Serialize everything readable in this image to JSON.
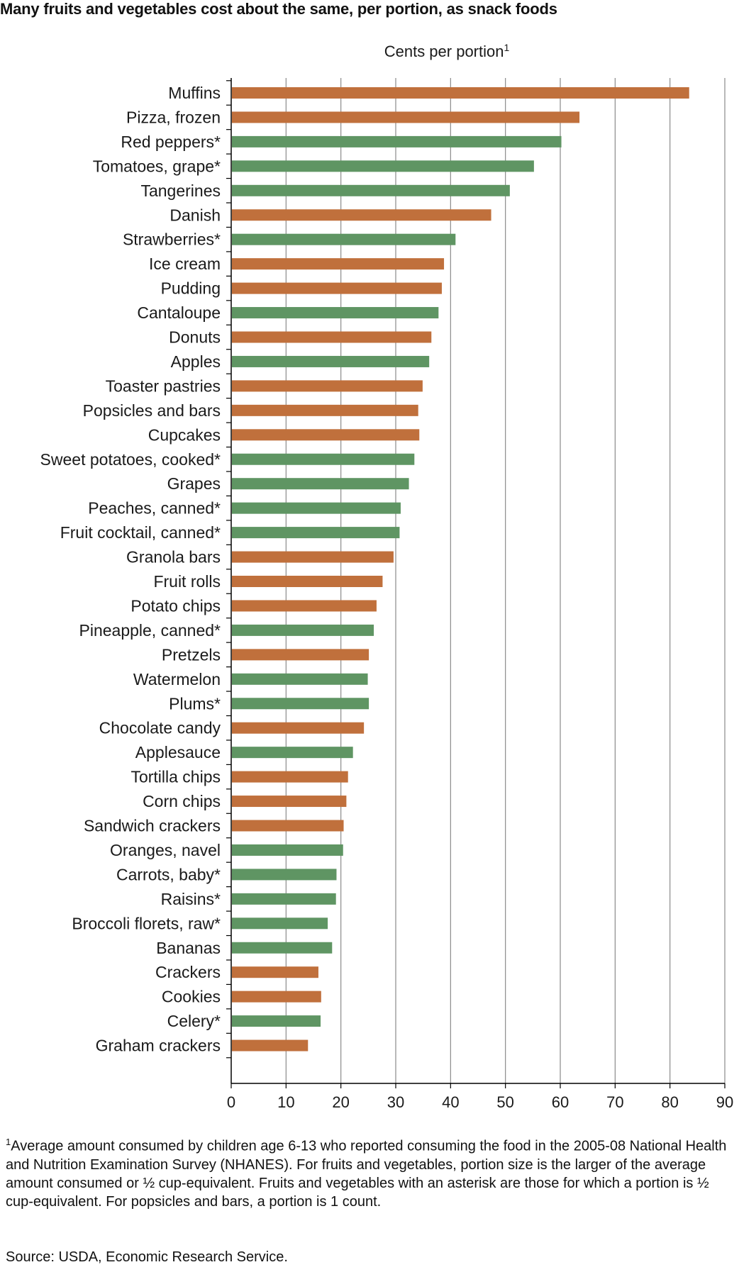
{
  "chart_data": {
    "type": "bar",
    "orientation": "horizontal",
    "title": "Many fruits and vegetables cost about the same, per portion, as snack foods",
    "xlabel": "Cents per portion",
    "xlabel_superscript": "1",
    "xlim": [
      0,
      90
    ],
    "xticks": [
      0,
      10,
      20,
      30,
      40,
      50,
      60,
      70,
      80,
      90
    ],
    "grid": true,
    "colors": {
      "snack": "#c0703c",
      "produce": "#5f9563"
    },
    "bars": [
      {
        "label": "Muffins",
        "value": 83.5,
        "group": "snack"
      },
      {
        "label": "Pizza, frozen",
        "value": 63.5,
        "group": "snack"
      },
      {
        "label": "Red peppers*",
        "value": 60.2,
        "group": "produce"
      },
      {
        "label": "Tomatoes, grape*",
        "value": 55.2,
        "group": "produce"
      },
      {
        "label": "Tangerines",
        "value": 50.8,
        "group": "produce"
      },
      {
        "label": "Danish",
        "value": 47.4,
        "group": "snack"
      },
      {
        "label": "Strawberries*",
        "value": 40.9,
        "group": "produce"
      },
      {
        "label": "Ice cream",
        "value": 38.8,
        "group": "snack"
      },
      {
        "label": "Pudding",
        "value": 38.4,
        "group": "snack"
      },
      {
        "label": "Cantaloupe",
        "value": 37.8,
        "group": "produce"
      },
      {
        "label": "Donuts",
        "value": 36.5,
        "group": "snack"
      },
      {
        "label": "Apples",
        "value": 36.1,
        "group": "produce"
      },
      {
        "label": "Toaster pastries",
        "value": 34.9,
        "group": "snack"
      },
      {
        "label": "Popsicles and bars",
        "value": 34.1,
        "group": "snack"
      },
      {
        "label": "Cupcakes",
        "value": 34.3,
        "group": "snack"
      },
      {
        "label": "Sweet potatoes, cooked*",
        "value": 33.4,
        "group": "produce"
      },
      {
        "label": "Grapes",
        "value": 32.4,
        "group": "produce"
      },
      {
        "label": "Peaches, canned*",
        "value": 30.9,
        "group": "produce"
      },
      {
        "label": "Fruit cocktail, canned*",
        "value": 30.7,
        "group": "produce"
      },
      {
        "label": "Granola bars",
        "value": 29.6,
        "group": "snack"
      },
      {
        "label": "Fruit rolls",
        "value": 27.6,
        "group": "snack"
      },
      {
        "label": "Potato chips",
        "value": 26.5,
        "group": "snack"
      },
      {
        "label": "Pineapple, canned*",
        "value": 26.0,
        "group": "produce"
      },
      {
        "label": "Pretzels",
        "value": 25.1,
        "group": "snack"
      },
      {
        "label": "Watermelon",
        "value": 24.9,
        "group": "produce"
      },
      {
        "label": "Plums*",
        "value": 25.1,
        "group": "produce"
      },
      {
        "label": "Chocolate candy",
        "value": 24.2,
        "group": "snack"
      },
      {
        "label": "Applesauce",
        "value": 22.2,
        "group": "produce"
      },
      {
        "label": "Tortilla chips",
        "value": 21.3,
        "group": "snack"
      },
      {
        "label": "Corn chips",
        "value": 21.0,
        "group": "snack"
      },
      {
        "label": "Sandwich crackers",
        "value": 20.5,
        "group": "snack"
      },
      {
        "label": "Oranges, navel",
        "value": 20.4,
        "group": "produce"
      },
      {
        "label": "Carrots, baby*",
        "value": 19.2,
        "group": "produce"
      },
      {
        "label": "Raisins*",
        "value": 19.1,
        "group": "produce"
      },
      {
        "label": "Broccoli florets, raw*",
        "value": 17.6,
        "group": "produce"
      },
      {
        "label": "Bananas",
        "value": 18.4,
        "group": "produce"
      },
      {
        "label": "Crackers",
        "value": 15.9,
        "group": "snack"
      },
      {
        "label": "Cookies",
        "value": 16.4,
        "group": "snack"
      },
      {
        "label": "Celery*",
        "value": 16.3,
        "group": "produce"
      },
      {
        "label": "Graham crackers",
        "value": 14.0,
        "group": "snack"
      }
    ]
  },
  "footnote": {
    "marker": "1",
    "text": "Average amount consumed by children age 6-13 who reported consuming the food in the 2005-08 National Health and Nutrition Examination Survey (NHANES). For fruits and vegetables, portion size is the larger of the average amount consumed or ½ cup-equivalent. Fruits and vegetables with an asterisk are those for which a portion is ½ cup-equivalent. For popsicles and bars, a portion is 1 count."
  },
  "source": "Source:  USDA, Economic Research Service."
}
